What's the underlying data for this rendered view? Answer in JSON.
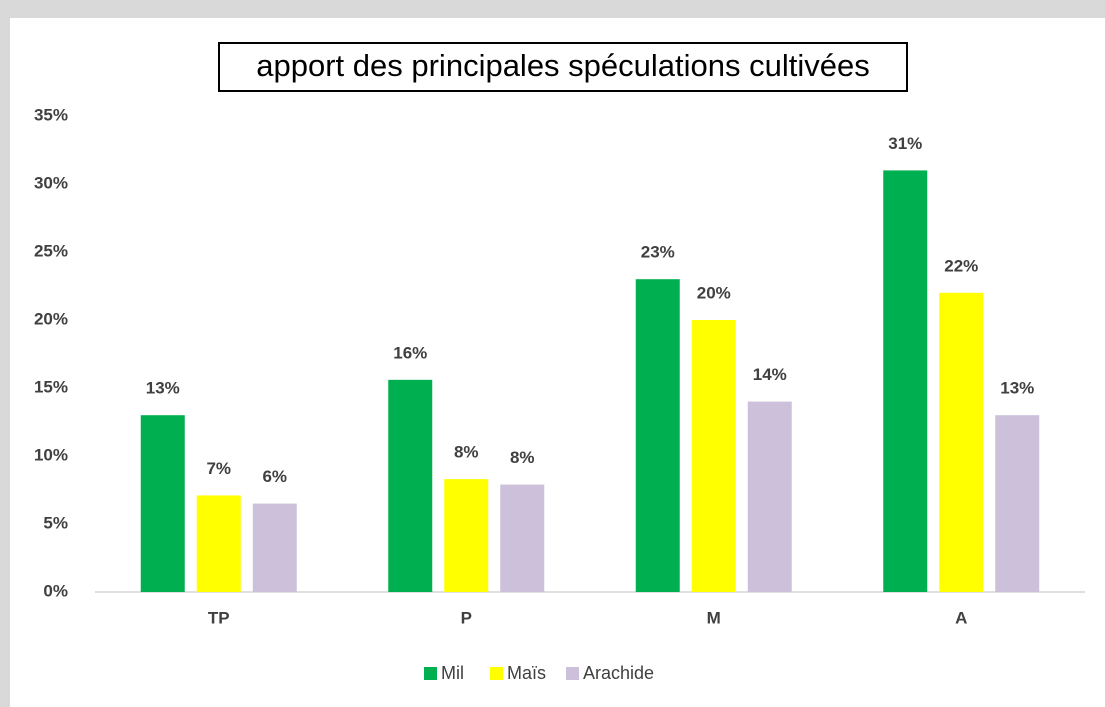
{
  "chart_data": {
    "type": "bar",
    "title": "apport des principales spéculations cultivées",
    "categories": [
      "TP",
      "P",
      "M",
      "A"
    ],
    "series": [
      {
        "name": "Mil",
        "color": "#00b050",
        "values": [
          13,
          15.6,
          23,
          31
        ],
        "value_labels": [
          "13%",
          "16%",
          "23%",
          "31%"
        ]
      },
      {
        "name": "Maïs",
        "color": "#ffff00",
        "values": [
          7.1,
          8.3,
          20,
          22
        ],
        "value_labels": [
          "7%",
          "8%",
          "20%",
          "22%"
        ]
      },
      {
        "name": "Arachide",
        "color": "#ccc0da",
        "values": [
          6.5,
          7.9,
          14,
          13
        ],
        "value_labels": [
          "6%",
          "8%",
          "14%",
          "13%"
        ]
      }
    ],
    "ylim": [
      0,
      35
    ],
    "yticks": [
      {
        "value": 0,
        "label": "0%"
      },
      {
        "value": 5,
        "label": "5%"
      },
      {
        "value": 10,
        "label": "10%"
      },
      {
        "value": 15,
        "label": "15%"
      },
      {
        "value": 20,
        "label": "20%"
      },
      {
        "value": 25,
        "label": "25%"
      },
      {
        "value": 30,
        "label": "30%"
      },
      {
        "value": 35,
        "label": "35%"
      }
    ],
    "grid": false,
    "legend": "bottom"
  }
}
